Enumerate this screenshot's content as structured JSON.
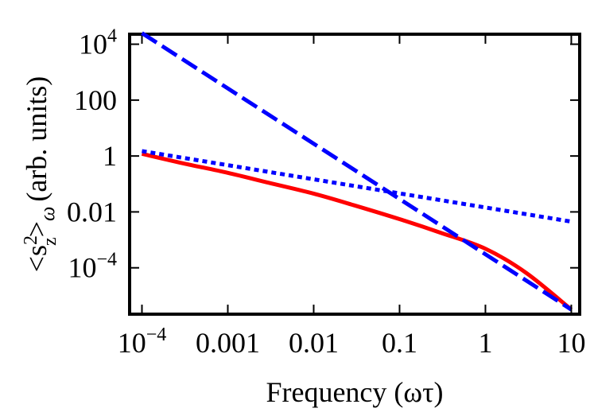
{
  "chart_data": {
    "type": "line",
    "xlabel": "Frequency (ωτ)",
    "ylabel_text": "(arb. units)",
    "ylabel_math": {
      "open": "<s",
      "sup": "2",
      "sub": "z",
      "close": ">",
      "close_sub": "ω"
    },
    "x_scale": "log",
    "y_scale": "log",
    "xlim": [
      7.5e-05,
      12
    ],
    "ylim": [
      2.5e-06,
      20000
    ],
    "grid": false,
    "x_ticks": [
      {
        "value": 0.0001,
        "base": "10",
        "exp": "−4"
      },
      {
        "value": 0.001,
        "label": "0.001"
      },
      {
        "value": 0.01,
        "label": "0.01"
      },
      {
        "value": 0.1,
        "label": "0.1"
      },
      {
        "value": 1,
        "label": "1"
      },
      {
        "value": 10,
        "label": "10"
      }
    ],
    "y_ticks": [
      {
        "value": 10000,
        "base": "10",
        "exp": "4"
      },
      {
        "value": 100,
        "label": "100"
      },
      {
        "value": 1,
        "label": "1"
      },
      {
        "value": 0.01,
        "label": "0.01"
      },
      {
        "value": 0.0001,
        "base": "10",
        "exp": "−4"
      }
    ],
    "series": [
      {
        "style": "solid",
        "color": "#ff0000",
        "x": [
          0.0001,
          0.0003,
          0.001,
          0.003,
          0.01,
          0.03,
          0.1,
          0.3,
          1,
          3,
          10
        ],
        "y": [
          1.2,
          0.55,
          0.25,
          0.11,
          0.045,
          0.017,
          0.0055,
          0.0018,
          0.00048,
          6.5e-05,
          3.2e-06
        ]
      },
      {
        "style": "dashed",
        "color": "#0000ff",
        "x": [
          0.0001,
          10
        ],
        "y": [
          25000,
          3.2e-06
        ]
      },
      {
        "style": "dotted",
        "color": "#0000ff",
        "x": [
          0.0001,
          10
        ],
        "y": [
          1.5,
          0.0045
        ]
      }
    ]
  }
}
